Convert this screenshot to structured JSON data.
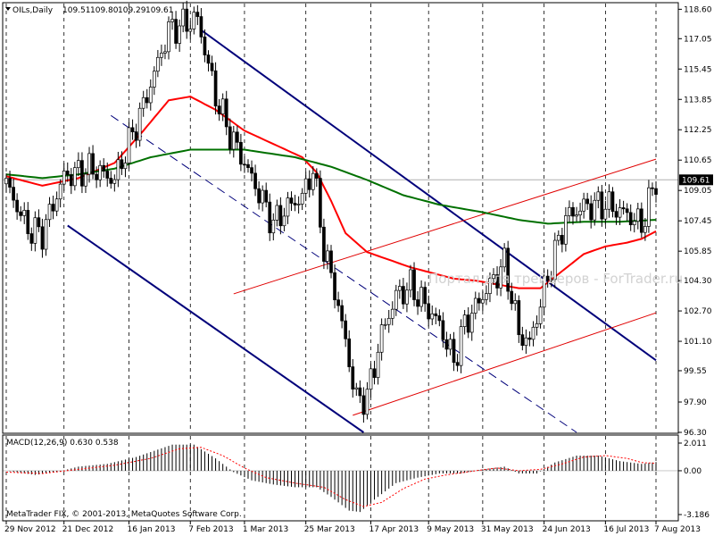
{
  "chart_data": [
    {
      "type": "candlestick",
      "title": "OILs,Daily",
      "ohlc": {
        "open": "109.51",
        "high": "109.80",
        "low": "109.29",
        "close": "109.61"
      },
      "ylim": [
        96.3,
        118.9
      ],
      "y_ticks": [
        96.3,
        97.9,
        99.55,
        101.1,
        102.7,
        104.3,
        105.85,
        107.45,
        109.05,
        110.65,
        112.25,
        113.85,
        115.45,
        117.05,
        118.6
      ],
      "y_tick_labels": [
        "96.30",
        "97.90",
        "99.55",
        "101.10",
        "102.70",
        "104.30",
        "105.85",
        "107.45",
        "109.05",
        "110.65",
        "112.25",
        "113.85",
        "115.45",
        "117.05",
        "118.60"
      ],
      "current_price": "109.61",
      "current_value": 109.61,
      "x_labels": [
        "29 Nov 2012",
        "21 Dec 2012",
        "16 Jan 2013",
        "7 Feb 2013",
        "1 Mar 2013",
        "25 Mar 2013",
        "17 Apr 2013",
        "9 May 2013",
        "31 May 2013",
        "24 Jun 2013",
        "16 Jul 2013",
        "7 Aug 2013"
      ],
      "n_bars": 181,
      "label_bars": [
        0,
        16,
        34,
        51,
        66,
        83,
        101,
        117,
        132,
        149,
        166,
        180
      ],
      "vgrid_bars": [
        0,
        16,
        34,
        51,
        66,
        83,
        101,
        117,
        132,
        149,
        166,
        180
      ],
      "price_anchors": [
        [
          0,
          109.4
        ],
        [
          6,
          107.0
        ],
        [
          10,
          106.8
        ],
        [
          16,
          109.8
        ],
        [
          24,
          110.2
        ],
        [
          30,
          109.6
        ],
        [
          38,
          113.5
        ],
        [
          45,
          117.5
        ],
        [
          53,
          118.1
        ],
        [
          58,
          114.0
        ],
        [
          62,
          112.0
        ],
        [
          66,
          110.5
        ],
        [
          74,
          107.3
        ],
        [
          78,
          108.2
        ],
        [
          82,
          108.7
        ],
        [
          85,
          110.2
        ],
        [
          88,
          106.0
        ],
        [
          92,
          103.0
        ],
        [
          94,
          101.0
        ],
        [
          97,
          98.0
        ],
        [
          100,
          98.2
        ],
        [
          104,
          101.5
        ],
        [
          108,
          103.5
        ],
        [
          112,
          104.0
        ],
        [
          116,
          103.0
        ],
        [
          120,
          102.0
        ],
        [
          124,
          100.0
        ],
        [
          127,
          102.0
        ],
        [
          132,
          103.5
        ],
        [
          138,
          105.2
        ],
        [
          140,
          103.5
        ],
        [
          142,
          101.5
        ],
        [
          145,
          101.0
        ],
        [
          150,
          104.5
        ],
        [
          155,
          107.6
        ],
        [
          160,
          108.2
        ],
        [
          166,
          108.3
        ],
        [
          172,
          107.8
        ],
        [
          176,
          107.2
        ],
        [
          180,
          109.6
        ]
      ],
      "series": [
        {
          "name": "",
          "color": "#ff0000",
          "width": 2,
          "values": [
            [
              0,
              109.8
            ],
            [
              10,
              109.3
            ],
            [
              20,
              109.7
            ],
            [
              30,
              110.5
            ],
            [
              38,
              112.2
            ],
            [
              45,
              113.8
            ],
            [
              51,
              114.0
            ],
            [
              58,
              113.3
            ],
            [
              66,
              112.2
            ],
            [
              74,
              111.5
            ],
            [
              82,
              110.8
            ],
            [
              86,
              110.0
            ],
            [
              90,
              108.5
            ],
            [
              94,
              106.8
            ],
            [
              100,
              105.8
            ],
            [
              106,
              105.4
            ],
            [
              112,
              105.0
            ],
            [
              118,
              104.7
            ],
            [
              124,
              104.4
            ],
            [
              130,
              104.3
            ],
            [
              136,
              104.1
            ],
            [
              142,
              103.9
            ],
            [
              148,
              103.9
            ],
            [
              154,
              104.8
            ],
            [
              160,
              105.7
            ],
            [
              166,
              106.1
            ],
            [
              172,
              106.3
            ],
            [
              176,
              106.5
            ],
            [
              180,
              106.9
            ]
          ]
        },
        {
          "name": "",
          "color": "#007000",
          "width": 2,
          "values": [
            [
              0,
              109.9
            ],
            [
              10,
              109.7
            ],
            [
              20,
              109.9
            ],
            [
              30,
              110.2
            ],
            [
              40,
              110.8
            ],
            [
              51,
              111.2
            ],
            [
              66,
              111.2
            ],
            [
              80,
              110.8
            ],
            [
              90,
              110.3
            ],
            [
              100,
              109.6
            ],
            [
              110,
              108.8
            ],
            [
              120,
              108.3
            ],
            [
              132,
              107.9
            ],
            [
              142,
              107.5
            ],
            [
              150,
              107.3
            ],
            [
              160,
              107.4
            ],
            [
              170,
              107.4
            ],
            [
              180,
              107.5
            ]
          ]
        }
      ],
      "trendlines": [
        {
          "color": "#00007a",
          "width": 2,
          "dash": false,
          "p1": [
            54,
            117.5
          ],
          "p2": [
            180,
            100.1
          ]
        },
        {
          "color": "#00007a",
          "width": 2,
          "dash": false,
          "p1": [
            17,
            107.2
          ],
          "p2": [
            99,
            96.3
          ]
        },
        {
          "color": "#00007a",
          "width": 1,
          "dash": true,
          "p1": [
            29,
            113.0
          ],
          "p2": [
            158,
            96.3
          ]
        },
        {
          "color": "#e00000",
          "width": 1,
          "dash": false,
          "p1": [
            63,
            103.6
          ],
          "p2": [
            180,
            110.7
          ]
        },
        {
          "color": "#e00000",
          "width": 1,
          "dash": false,
          "p1": [
            96,
            97.2
          ],
          "p2": [
            180,
            102.6
          ]
        }
      ],
      "watermark": "Портал для трейдеров - ForTrader.ru"
    },
    {
      "type": "bar",
      "title": "MACD(12,26,9) 0.630 0.538",
      "ylim": [
        -3.186,
        2.011
      ],
      "y_ticks": [
        2.011,
        0.0,
        -3.186
      ],
      "y_tick_labels": [
        "2.011",
        "0.00",
        "-3.186"
      ],
      "macd_anchors": [
        [
          0,
          0.0
        ],
        [
          8,
          -0.3
        ],
        [
          14,
          -0.1
        ],
        [
          20,
          0.3
        ],
        [
          28,
          0.5
        ],
        [
          36,
          1.0
        ],
        [
          46,
          1.9
        ],
        [
          52,
          1.9
        ],
        [
          58,
          0.9
        ],
        [
          63,
          -0.1
        ],
        [
          68,
          -0.7
        ],
        [
          74,
          -1.0
        ],
        [
          80,
          -1.2
        ],
        [
          86,
          -1.2
        ],
        [
          90,
          -1.9
        ],
        [
          95,
          -2.9
        ],
        [
          98,
          -3.0
        ],
        [
          102,
          -2.1
        ],
        [
          108,
          -0.9
        ],
        [
          114,
          -0.5
        ],
        [
          120,
          -0.2
        ],
        [
          126,
          -0.2
        ],
        [
          132,
          0.1
        ],
        [
          138,
          0.3
        ],
        [
          142,
          -0.2
        ],
        [
          147,
          -0.2
        ],
        [
          152,
          0.6
        ],
        [
          158,
          1.1
        ],
        [
          164,
          1.1
        ],
        [
          170,
          0.7
        ],
        [
          176,
          0.5
        ],
        [
          180,
          0.63
        ]
      ],
      "signal_anchors": [
        [
          0,
          -0.1
        ],
        [
          10,
          -0.2
        ],
        [
          20,
          0.1
        ],
        [
          30,
          0.4
        ],
        [
          40,
          0.9
        ],
        [
          48,
          1.6
        ],
        [
          54,
          1.7
        ],
        [
          60,
          1.1
        ],
        [
          66,
          0.2
        ],
        [
          72,
          -0.5
        ],
        [
          80,
          -0.9
        ],
        [
          88,
          -1.2
        ],
        [
          94,
          -2.1
        ],
        [
          99,
          -2.6
        ],
        [
          104,
          -2.3
        ],
        [
          110,
          -1.3
        ],
        [
          116,
          -0.6
        ],
        [
          122,
          -0.3
        ],
        [
          130,
          0.0
        ],
        [
          136,
          0.2
        ],
        [
          142,
          0.0
        ],
        [
          148,
          0.1
        ],
        [
          154,
          0.5
        ],
        [
          160,
          1.0
        ],
        [
          166,
          1.1
        ],
        [
          172,
          0.9
        ],
        [
          176,
          0.6
        ],
        [
          180,
          0.538
        ]
      ]
    }
  ],
  "footer": {
    "copyright": "MetaTrader FIX, © 2001-2013, MetaQuotes Software Corp."
  }
}
